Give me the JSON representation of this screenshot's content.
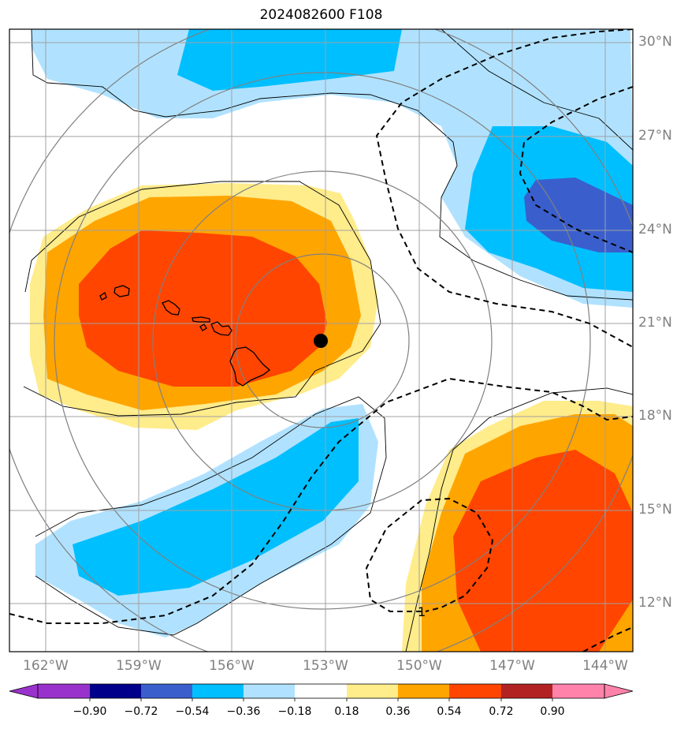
{
  "title": "2024082600 F108",
  "lat_labels": [
    "30°N",
    "27°N",
    "24°N",
    "21°N",
    "18°N",
    "15°N",
    "12°N"
  ],
  "lon_labels": [
    "162°W",
    "159°W",
    "156°W",
    "153°W",
    "150°W",
    "147°W",
    "144°W"
  ],
  "contour_label": "1",
  "colorbar": {
    "ticks": [
      "−0.90",
      "−0.72",
      "−0.54",
      "−0.36",
      "−0.18",
      "0.18",
      "0.36",
      "0.54",
      "0.72",
      "0.90"
    ],
    "colors": [
      "#9932cc",
      "#00008b",
      "#3a5fcd",
      "#00bfff",
      "#b0e2ff",
      "#ffffff",
      "#ffec8b",
      "#ffa500",
      "#ff4500",
      "#b22222",
      "#ff82ab"
    ]
  },
  "marker_location": "storm center dot near 20.5°N, 153°W"
}
